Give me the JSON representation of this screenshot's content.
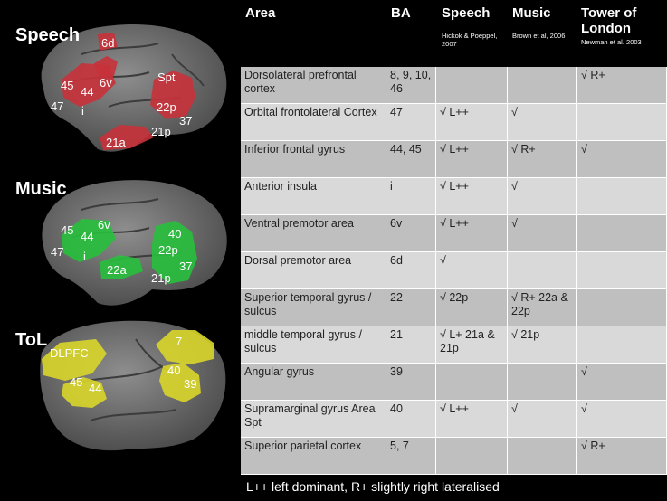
{
  "brain_panels": [
    {
      "title": "Speech",
      "color": "#c8313a",
      "labels": [
        "6d",
        "45",
        "44",
        "6v",
        "Spt",
        "47",
        "i",
        "22p",
        "37",
        "21p",
        "21a"
      ]
    },
    {
      "title": "Music",
      "color": "#28c03c",
      "labels": [
        "45",
        "6v",
        "44",
        "40",
        "47",
        "i",
        "22p",
        "22a",
        "37",
        "21p"
      ]
    },
    {
      "title": "ToL",
      "color": "#d9d62a",
      "labels": [
        "DLPFC",
        "7",
        "45",
        "44",
        "40",
        "39"
      ]
    }
  ],
  "table": {
    "headers": [
      {
        "title": "Area",
        "sub": ""
      },
      {
        "title": "BA",
        "sub": ""
      },
      {
        "title": "Speech",
        "sub": "Hickok & Poeppel, 2007"
      },
      {
        "title": "Music",
        "sub": "Brown et al, 2006"
      },
      {
        "title": "Tower of London",
        "sub": "Newman et al. 2003"
      }
    ],
    "rows": [
      [
        "Dorsolateral prefrontal cortex",
        "8, 9, 10, 46",
        "",
        "",
        "√ R+"
      ],
      [
        "Orbital frontolateral Cortex",
        "47",
        "√ L++",
        "√",
        ""
      ],
      [
        "Inferior frontal gyrus",
        "44, 45",
        "√ L++",
        "√ R+",
        "√"
      ],
      [
        "Anterior insula",
        "i",
        "√ L++",
        "√",
        ""
      ],
      [
        "Ventral premotor area",
        "6v",
        "√ L++",
        "√",
        ""
      ],
      [
        "Dorsal premotor area",
        "6d",
        "√",
        "",
        ""
      ],
      [
        "Superior temporal gyrus / sulcus",
        "22",
        "√ 22p",
        "√ R+ 22a & 22p",
        ""
      ],
      [
        "middle temporal gyrus / sulcus",
        "21",
        "√ L+ 21a & 21p",
        "√ 21p",
        ""
      ],
      [
        "Angular gyrus",
        "39",
        "",
        "",
        "√"
      ],
      [
        "Supramarginal gyrus Area Spt",
        "40",
        "√ L++",
        "√",
        "√"
      ],
      [
        "Superior parietal cortex",
        "5, 7",
        "",
        "",
        "√ R+"
      ]
    ]
  },
  "footnote": "L++ left dominant, R+ slightly right lateralised"
}
